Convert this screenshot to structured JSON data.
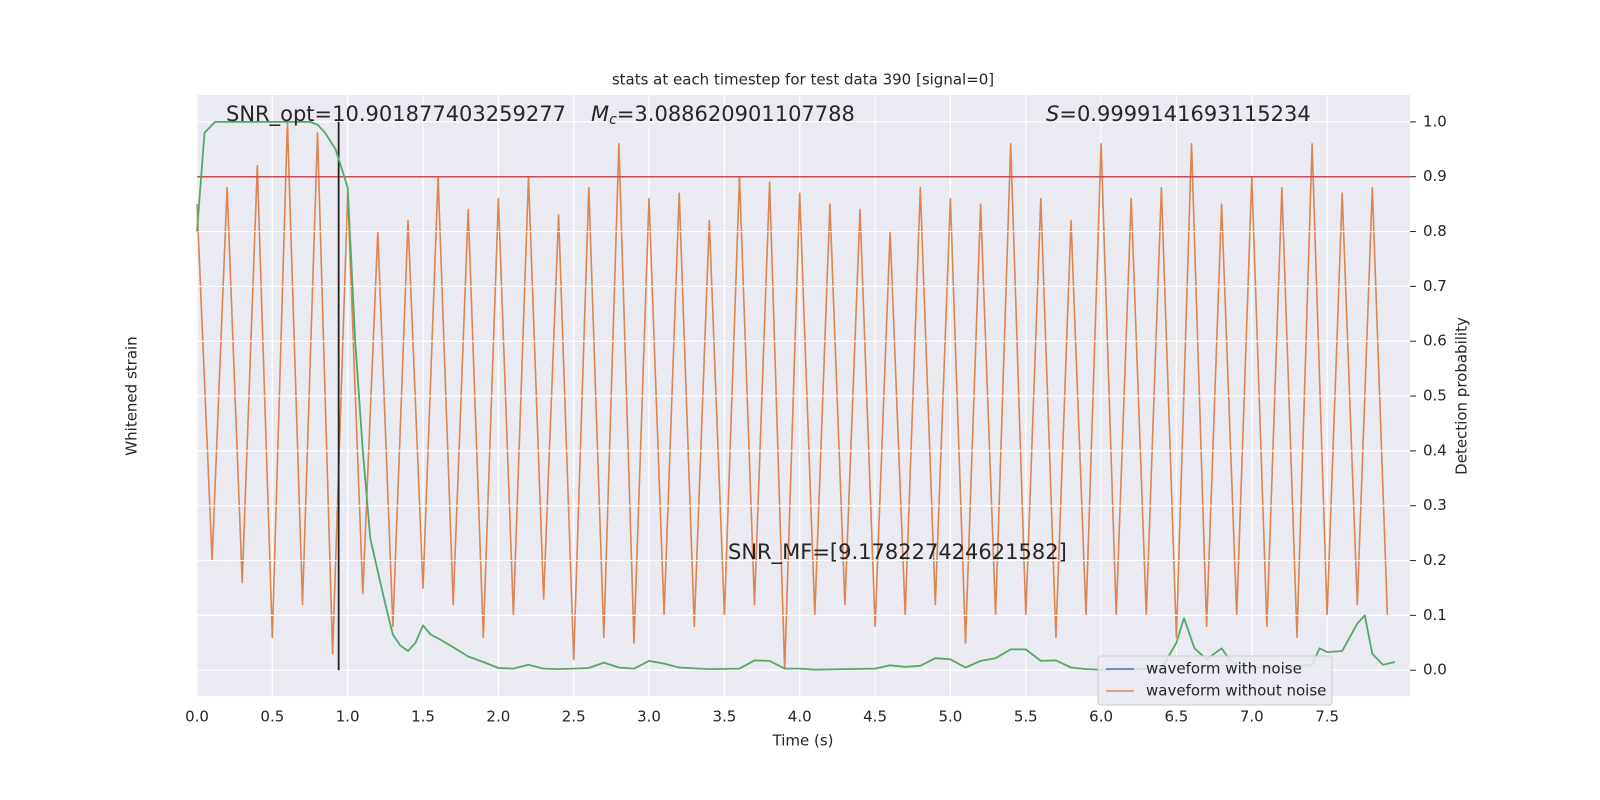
{
  "chart_data": {
    "type": "line",
    "title": "stats at each timestep for test data 390 [signal=0]",
    "x_label": "Time (s)",
    "y_label": "Whitened strain",
    "y2_label": "Detection probability",
    "annotations": {
      "snr_opt": "SNR_opt=10.901877403259277",
      "mc_symbol": "M",
      "mc_sub": "c",
      "mc_value": "=3.088620901107788",
      "s_symbol": "S",
      "s_value": "=0.9999141693115234",
      "snr_mf": "SNR_MF=[9.178227424621582]"
    },
    "xlim": [
      0,
      8.05
    ],
    "xticks": [
      {
        "value": 0,
        "label": "0.0"
      },
      0.5,
      {
        "value": 1,
        "label": "1.0"
      },
      1.5,
      {
        "value": 2,
        "label": "2.0"
      },
      2.5,
      {
        "value": 3,
        "label": "3.0"
      },
      3.5,
      {
        "value": 4,
        "label": "4.0"
      },
      4.5,
      {
        "value": 5,
        "label": "5.0"
      },
      5.5,
      {
        "value": 6,
        "label": "6.0"
      },
      6.5,
      {
        "value": 7,
        "label": "7.0"
      },
      7.5
    ],
    "y2lim": [
      -0.047,
      1.049
    ],
    "y2ticks": [
      {
        "value": 0,
        "label": "0.0"
      },
      0.1,
      0.2,
      0.3,
      0.4,
      0.5,
      0.6,
      0.7,
      0.8,
      0.9,
      {
        "value": 1,
        "label": "1.0"
      }
    ],
    "grid": true,
    "threshold": {
      "value": 0.9,
      "color": "#c44e52"
    },
    "marker_line": {
      "x": 0.94,
      "color": "#222222"
    },
    "series": [
      {
        "name": "waveform without noise",
        "color": "#dd8452",
        "axis": "y2",
        "x": [
          0.0,
          0.1,
          0.2,
          0.3,
          0.4,
          0.5,
          0.6,
          0.7,
          0.8,
          0.9,
          1.0,
          1.1,
          1.2,
          1.3,
          1.4,
          1.5,
          1.6,
          1.7,
          1.8,
          1.9,
          2.0,
          2.1,
          2.2,
          2.3,
          2.4,
          2.5,
          2.6,
          2.7,
          2.8,
          2.9,
          3.0,
          3.1,
          3.2,
          3.3,
          3.4,
          3.5,
          3.6,
          3.7,
          3.8,
          3.9,
          4.0,
          4.1,
          4.2,
          4.3,
          4.4,
          4.5,
          4.6,
          4.7,
          4.8,
          4.9,
          5.0,
          5.1,
          5.2,
          5.3,
          5.4,
          5.5,
          5.6,
          5.7,
          5.8,
          5.9,
          6.0,
          6.1,
          6.2,
          6.3,
          6.4,
          6.5,
          6.6,
          6.7,
          6.8,
          6.9,
          7.0,
          7.1,
          7.2,
          7.3,
          7.4,
          7.5,
          7.6,
          7.7,
          7.8,
          7.9
        ],
        "values": [
          0.85,
          0.2,
          0.88,
          0.16,
          0.92,
          0.06,
          1.0,
          0.12,
          0.98,
          0.03,
          0.87,
          0.14,
          0.8,
          0.08,
          0.82,
          0.15,
          0.9,
          0.12,
          0.84,
          0.06,
          0.86,
          0.1,
          0.9,
          0.13,
          0.83,
          0.02,
          0.88,
          0.06,
          0.96,
          0.05,
          0.86,
          0.1,
          0.87,
          0.08,
          0.82,
          0.1,
          0.9,
          0.12,
          0.89,
          0.0,
          0.87,
          0.1,
          0.85,
          0.12,
          0.84,
          0.08,
          0.8,
          0.1,
          0.88,
          0.12,
          0.86,
          0.05,
          0.85,
          0.1,
          0.96,
          0.1,
          0.86,
          0.06,
          0.82,
          0.1,
          0.96,
          0.1,
          0.86,
          0.1,
          0.88,
          0.06,
          0.96,
          0.08,
          0.85,
          0.1,
          0.9,
          0.08,
          0.88,
          0.06,
          0.96,
          0.1,
          0.87,
          0.12,
          0.88,
          0.1
        ]
      },
      {
        "name": "detection probability",
        "color": "#55a868",
        "axis": "y2",
        "x": [
          0.0,
          0.05,
          0.12,
          0.2,
          0.4,
          0.6,
          0.75,
          0.8,
          0.85,
          0.92,
          1.0,
          1.05,
          1.1,
          1.15,
          1.2,
          1.25,
          1.3,
          1.35,
          1.4,
          1.45,
          1.5,
          1.55,
          1.6,
          1.7,
          1.8,
          1.9,
          2.0,
          2.1,
          2.2,
          2.3,
          2.4,
          2.5,
          2.6,
          2.7,
          2.8,
          2.9,
          3.0,
          3.1,
          3.2,
          3.4,
          3.6,
          3.7,
          3.8,
          3.9,
          4.0,
          4.1,
          4.3,
          4.5,
          4.6,
          4.7,
          4.8,
          4.9,
          5.0,
          5.1,
          5.2,
          5.3,
          5.4,
          5.5,
          5.6,
          5.7,
          5.8,
          5.9,
          6.0,
          6.2,
          6.4,
          6.5,
          6.55,
          6.62,
          6.7,
          6.8,
          6.85,
          6.9,
          7.0,
          7.2,
          7.4,
          7.45,
          7.5,
          7.6,
          7.7,
          7.75,
          7.8,
          7.87,
          7.95
        ],
        "values": [
          0.8,
          0.98,
          1.0,
          1.0,
          1.0,
          1.0,
          1.0,
          0.995,
          0.98,
          0.95,
          0.88,
          0.6,
          0.4,
          0.24,
          0.18,
          0.12,
          0.065,
          0.045,
          0.035,
          0.05,
          0.082,
          0.065,
          0.058,
          0.042,
          0.025,
          0.015,
          0.004,
          0.003,
          0.01,
          0.003,
          0.002,
          0.003,
          0.004,
          0.014,
          0.005,
          0.003,
          0.017,
          0.012,
          0.005,
          0.002,
          0.003,
          0.018,
          0.017,
          0.003,
          0.003,
          0.001,
          0.002,
          0.003,
          0.009,
          0.006,
          0.008,
          0.022,
          0.02,
          0.005,
          0.017,
          0.022,
          0.038,
          0.038,
          0.017,
          0.018,
          0.005,
          0.002,
          0.001,
          0.002,
          0.003,
          0.05,
          0.095,
          0.04,
          0.02,
          0.04,
          0.02,
          0.01,
          0.005,
          0.005,
          0.01,
          0.04,
          0.033,
          0.035,
          0.085,
          0.1,
          0.03,
          0.01,
          0.015
        ]
      }
    ],
    "legend": {
      "position": "lower right",
      "entries": [
        {
          "name": "waveform with noise",
          "color": "#4c72b0"
        },
        {
          "name": "waveform without noise",
          "color": "#dd8452"
        }
      ]
    }
  }
}
